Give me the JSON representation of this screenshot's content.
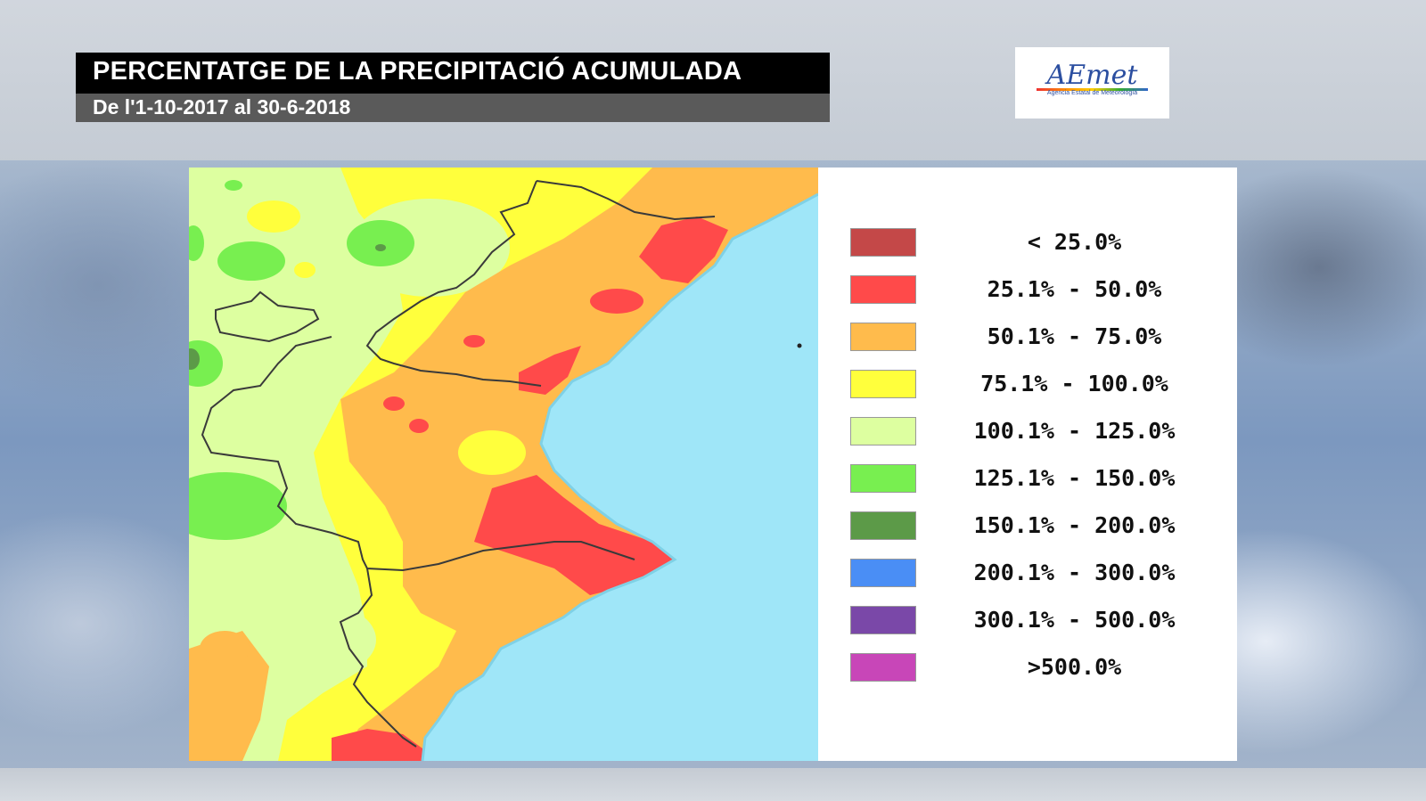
{
  "header": {
    "title": "PERCENTATGE DE LA PRECIPITACIÓ ACUMULADA",
    "subtitle": "De l'1-10-2017 al 30-6-2018"
  },
  "logo": {
    "name": "AEmet",
    "tagline": "Agencia Estatal de Meteorología"
  },
  "legend": {
    "items": [
      {
        "label": "< 25.0%",
        "color": "#c44848"
      },
      {
        "label": "25.1% - 50.0%",
        "color": "#ff4a4a"
      },
      {
        "label": "50.1% - 75.0%",
        "color": "#ffbb4c"
      },
      {
        "label": "75.1% - 100.0%",
        "color": "#ffff3c"
      },
      {
        "label": "100.1% - 125.0%",
        "color": "#ddffa0"
      },
      {
        "label": "125.1% - 150.0%",
        "color": "#78ef50"
      },
      {
        "label": "150.1% - 200.0%",
        "color": "#5c9a48"
      },
      {
        "label": "200.1% - 300.0%",
        "color": "#4a8ef5"
      },
      {
        "label": "300.1% - 500.0%",
        "color": "#7a48a8"
      },
      {
        "label": ">500.0%",
        "color": "#c846b8"
      }
    ]
  },
  "map": {
    "sea_color": "#9fe6f8",
    "border_color": "#3a3a3a"
  }
}
